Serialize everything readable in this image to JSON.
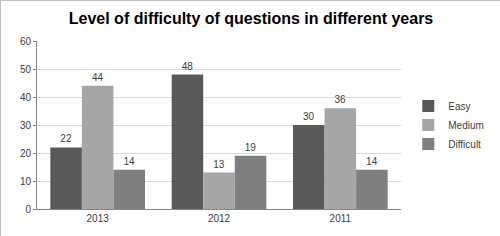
{
  "chart_data": {
    "type": "bar",
    "title": "Level of difficulty of questions in different years",
    "categories": [
      "2013",
      "2012",
      "2011"
    ],
    "series": [
      {
        "name": "Easy",
        "color": "#595959",
        "values": [
          22,
          48,
          30
        ]
      },
      {
        "name": "Medium",
        "color": "#a6a6a6",
        "values": [
          44,
          13,
          36
        ]
      },
      {
        "name": "Difficult",
        "color": "#7f7f7f",
        "values": [
          14,
          19,
          14
        ]
      }
    ],
    "ylim": [
      0,
      60
    ],
    "yticks": [
      0,
      10,
      20,
      30,
      40,
      50,
      60
    ],
    "grid": true,
    "legend": "right",
    "data_labels": true
  }
}
